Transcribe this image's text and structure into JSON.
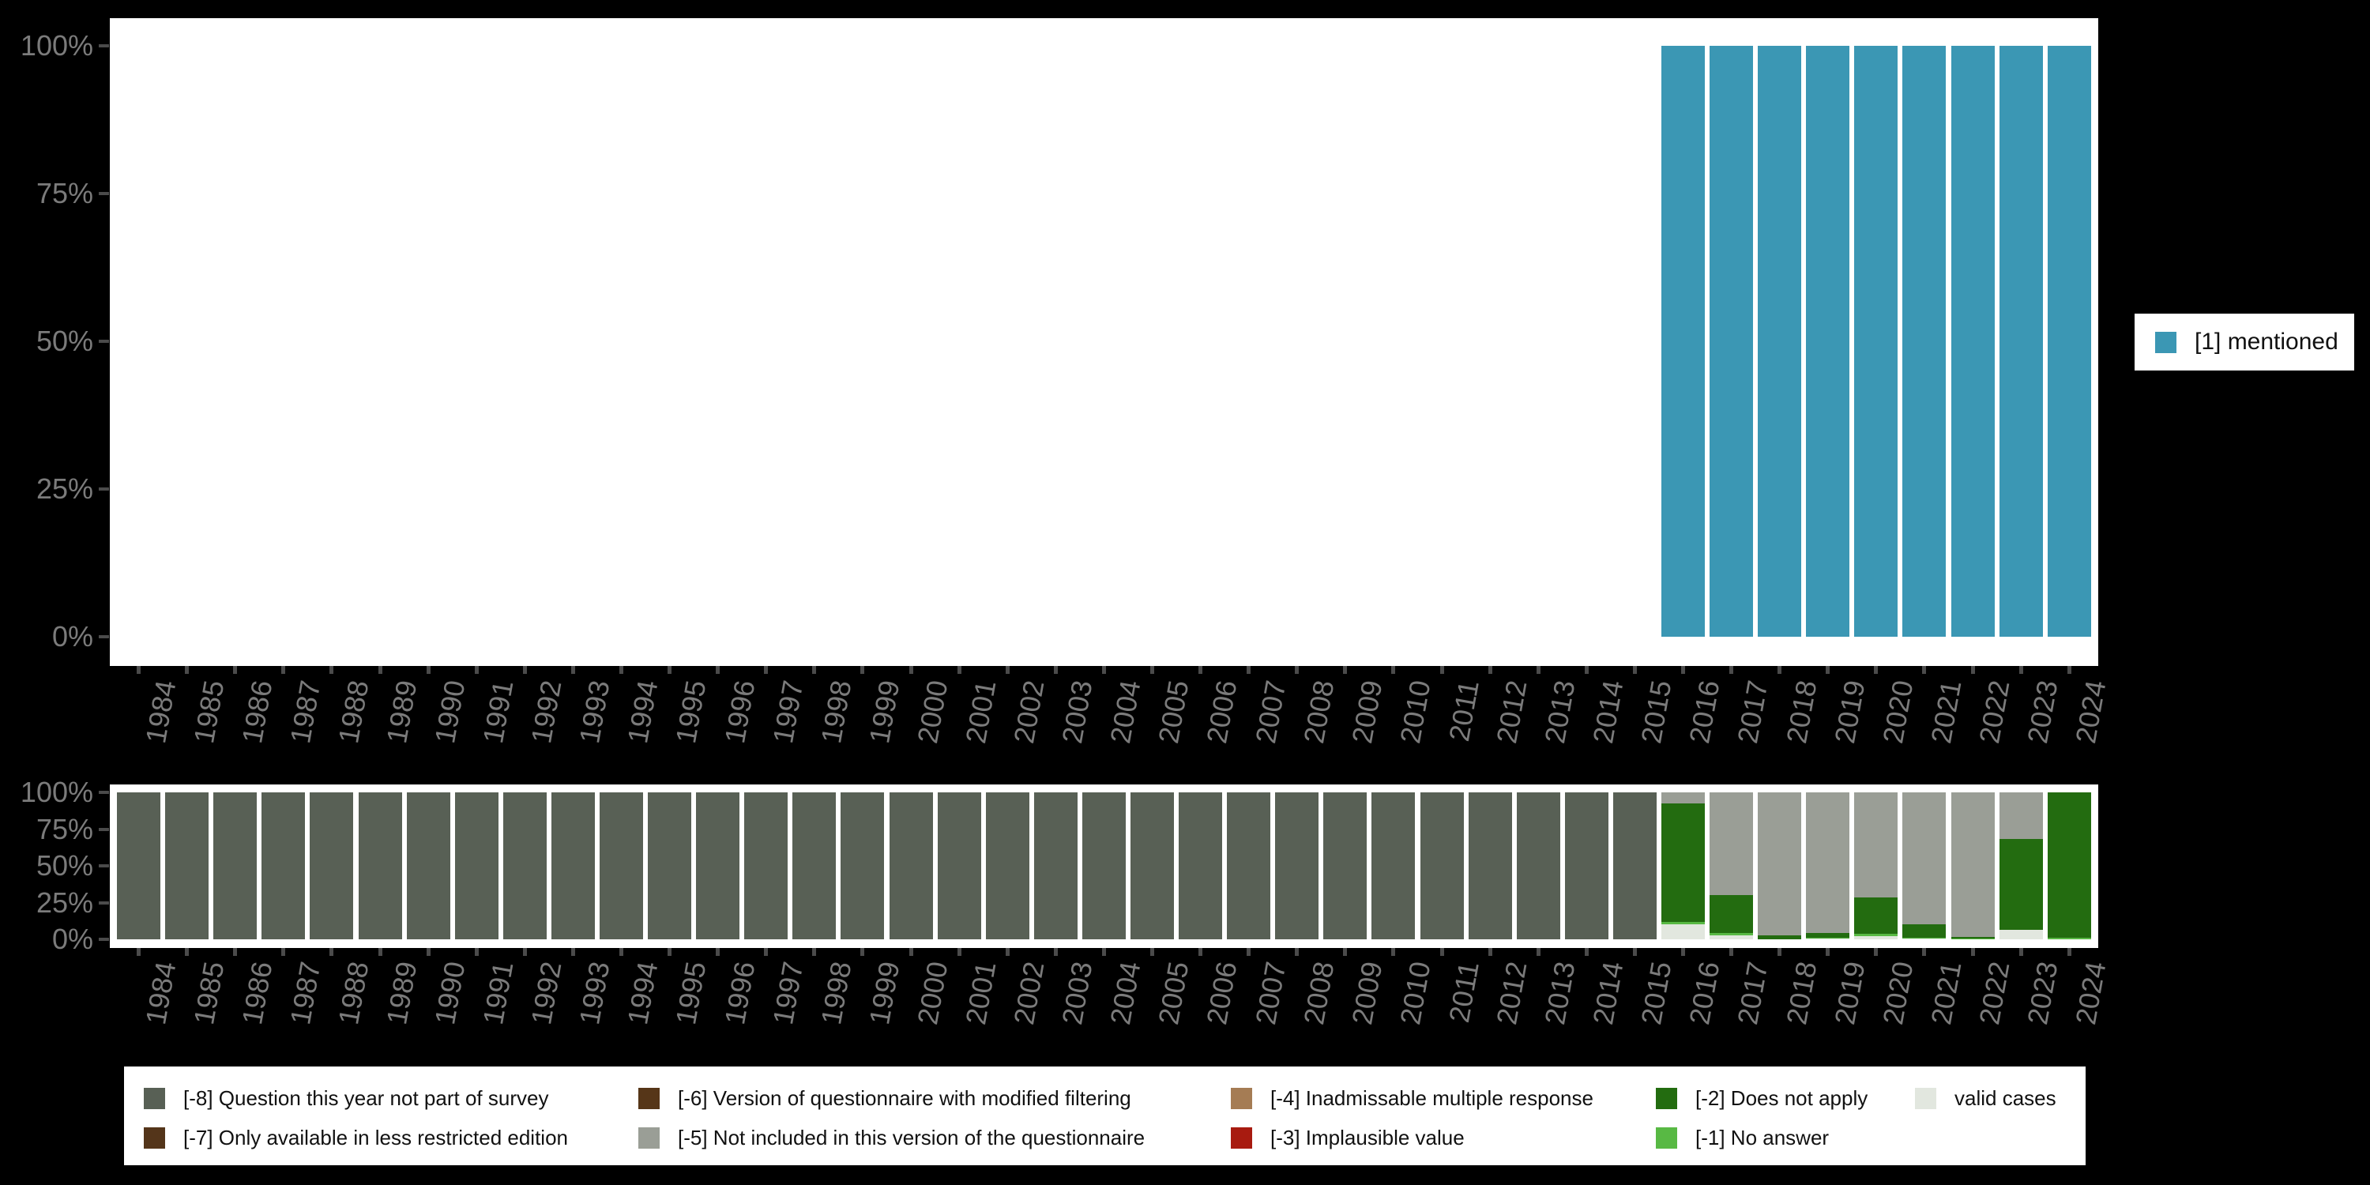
{
  "background": "#000000",
  "axis": {
    "tick_color": "#4b4b4b",
    "label_color": "#7b7b7b",
    "y_tick_labels": [
      "100%",
      "75%",
      "50%",
      "25%",
      "0%"
    ]
  },
  "top_legend": {
    "label": "[1] mentioned",
    "color": "#3B97B4"
  },
  "bottom_legend": {
    "items": [
      {
        "label": "[-8] Question this year not part of survey",
        "color": "#586055",
        "row": 0,
        "col": 0
      },
      {
        "label": "[-7] Only available in less restricted edition",
        "color": "#54351A",
        "row": 1,
        "col": 0
      },
      {
        "label": "[-6] Version of questionnaire with modified filtering",
        "color": "#563618",
        "row": 0,
        "col": 1
      },
      {
        "label": "[-5] Not included in this version of the questionnaire",
        "color": "#9A9E96",
        "row": 1,
        "col": 1
      },
      {
        "label": "[-4] Inadmissable multiple response",
        "color": "#A57C54",
        "row": 0,
        "col": 2
      },
      {
        "label": "[-3] Implausible value",
        "color": "#A81B10",
        "row": 1,
        "col": 2
      },
      {
        "label": "[-2] Does not apply",
        "color": "#236C10",
        "row": 0,
        "col": 3
      },
      {
        "label": "[-1] No answer",
        "color": "#58B944",
        "row": 1,
        "col": 3
      },
      {
        "label": "valid cases",
        "color": "#E2E7DF",
        "row": 0,
        "col": 4
      }
    ]
  },
  "chart_data": [
    {
      "type": "bar",
      "name": "valid-values-chart",
      "title": "",
      "stacked": false,
      "legend_position": "right",
      "ylim": [
        0,
        100
      ],
      "yticks": [
        "0%",
        "25%",
        "50%",
        "75%",
        "100%"
      ],
      "grid": false,
      "categories": [
        "1984",
        "1985",
        "1986",
        "1987",
        "1988",
        "1989",
        "1990",
        "1991",
        "1992",
        "1993",
        "1994",
        "1995",
        "1996",
        "1997",
        "1998",
        "1999",
        "2000",
        "2001",
        "2002",
        "2003",
        "2004",
        "2005",
        "2006",
        "2007",
        "2008",
        "2009",
        "2010",
        "2011",
        "2012",
        "2013",
        "2014",
        "2015",
        "2016",
        "2017",
        "2018",
        "2019",
        "2020",
        "2021",
        "2022",
        "2023",
        "2024"
      ],
      "series": [
        {
          "name": "[1] mentioned",
          "color": "#3B97B4",
          "values": [
            0,
            0,
            0,
            0,
            0,
            0,
            0,
            0,
            0,
            0,
            0,
            0,
            0,
            0,
            0,
            0,
            0,
            0,
            0,
            0,
            0,
            0,
            0,
            0,
            0,
            0,
            0,
            0,
            0,
            0,
            0,
            0,
            100,
            100,
            100,
            100,
            100,
            100,
            100,
            100,
            100
          ]
        }
      ]
    },
    {
      "type": "bar",
      "name": "missing-values-chart",
      "title": "",
      "stacked": true,
      "legend_position": "bottom",
      "ylim": [
        0,
        100
      ],
      "yticks": [
        "0%",
        "25%",
        "50%",
        "75%",
        "100%"
      ],
      "grid": false,
      "categories": [
        "1984",
        "1985",
        "1986",
        "1987",
        "1988",
        "1989",
        "1990",
        "1991",
        "1992",
        "1993",
        "1994",
        "1995",
        "1996",
        "1997",
        "1998",
        "1999",
        "2000",
        "2001",
        "2002",
        "2003",
        "2004",
        "2005",
        "2006",
        "2007",
        "2008",
        "2009",
        "2010",
        "2011",
        "2012",
        "2013",
        "2014",
        "2015",
        "2016",
        "2017",
        "2018",
        "2019",
        "2020",
        "2021",
        "2022",
        "2023",
        "2024"
      ],
      "series": [
        {
          "name": "valid cases",
          "color": "#E2E7DF",
          "values": [
            0,
            0,
            0,
            0,
            0,
            0,
            0,
            0,
            0,
            0,
            0,
            0,
            0,
            0,
            0,
            0,
            0,
            0,
            0,
            0,
            0,
            0,
            0,
            0,
            0,
            0,
            0,
            0,
            0,
            0,
            0,
            0,
            10,
            2.9,
            0,
            0.5,
            2,
            0.5,
            0,
            6.5,
            0
          ]
        },
        {
          "name": "[-1] No answer",
          "color": "#58B944",
          "values": [
            0,
            0,
            0,
            0,
            0,
            0,
            0,
            0,
            0,
            0,
            0,
            0,
            0,
            0,
            0,
            0,
            0,
            0,
            0,
            0,
            0,
            0,
            0,
            0,
            0,
            0,
            0,
            0,
            0,
            0,
            0,
            0,
            2,
            1.6,
            0,
            0.5,
            1.5,
            0.6,
            0.5,
            0,
            1.1
          ]
        },
        {
          "name": "[-2] Does not apply",
          "color": "#236C10",
          "values": [
            0,
            0,
            0,
            0,
            0,
            0,
            0,
            0,
            0,
            0,
            0,
            0,
            0,
            0,
            0,
            0,
            0,
            0,
            0,
            0,
            0,
            0,
            0,
            0,
            0,
            0,
            0,
            0,
            0,
            0,
            0,
            0,
            80.5,
            25.5,
            2.7,
            3.5,
            25,
            9.1,
            1.1,
            62,
            98.9
          ]
        },
        {
          "name": "[-3] Implausible value",
          "color": "#A81B10",
          "values": [
            0,
            0,
            0,
            0,
            0,
            0,
            0,
            0,
            0,
            0,
            0,
            0,
            0,
            0,
            0,
            0,
            0,
            0,
            0,
            0,
            0,
            0,
            0,
            0,
            0,
            0,
            0,
            0,
            0,
            0,
            0,
            0,
            0,
            0,
            0,
            0,
            0,
            0,
            0,
            0,
            0
          ]
        },
        {
          "name": "[-4] Inadmissable multiple response",
          "color": "#A57C54",
          "values": [
            0,
            0,
            0,
            0,
            0,
            0,
            0,
            0,
            0,
            0,
            0,
            0,
            0,
            0,
            0,
            0,
            0,
            0,
            0,
            0,
            0,
            0,
            0,
            0,
            0,
            0,
            0,
            0,
            0,
            0,
            0,
            0,
            0,
            0,
            0,
            0,
            0,
            0,
            0,
            0,
            0
          ]
        },
        {
          "name": "[-5] Not included in this version of the questionnaire",
          "color": "#9A9E96",
          "values": [
            0,
            0,
            0,
            0,
            0,
            0,
            0,
            0,
            0,
            0,
            0,
            0,
            0,
            0,
            0,
            0,
            0,
            0,
            0,
            0,
            0,
            0,
            0,
            0,
            0,
            0,
            0,
            0,
            0,
            0,
            0,
            0,
            7.5,
            70,
            97.3,
            95.5,
            71.5,
            89.8,
            98.4,
            31.5,
            0
          ]
        },
        {
          "name": "[-6] Version of questionnaire with modified filtering",
          "color": "#563618",
          "values": [
            0,
            0,
            0,
            0,
            0,
            0,
            0,
            0,
            0,
            0,
            0,
            0,
            0,
            0,
            0,
            0,
            0,
            0,
            0,
            0,
            0,
            0,
            0,
            0,
            0,
            0,
            0,
            0,
            0,
            0,
            0,
            0,
            0,
            0,
            0,
            0,
            0,
            0,
            0,
            0,
            0
          ]
        },
        {
          "name": "[-7] Only available in less restricted edition",
          "color": "#54351A",
          "values": [
            0,
            0,
            0,
            0,
            0,
            0,
            0,
            0,
            0,
            0,
            0,
            0,
            0,
            0,
            0,
            0,
            0,
            0,
            0,
            0,
            0,
            0,
            0,
            0,
            0,
            0,
            0,
            0,
            0,
            0,
            0,
            0,
            0,
            0,
            0,
            0,
            0,
            0,
            0,
            0,
            0
          ]
        },
        {
          "name": "[-8] Question this year not part of survey",
          "color": "#586055",
          "values": [
            100,
            100,
            100,
            100,
            100,
            100,
            100,
            100,
            100,
            100,
            100,
            100,
            100,
            100,
            100,
            100,
            100,
            100,
            100,
            100,
            100,
            100,
            100,
            100,
            100,
            100,
            100,
            100,
            100,
            100,
            100,
            100,
            0,
            0,
            0,
            0,
            0,
            0,
            0,
            0,
            0
          ]
        }
      ]
    }
  ]
}
